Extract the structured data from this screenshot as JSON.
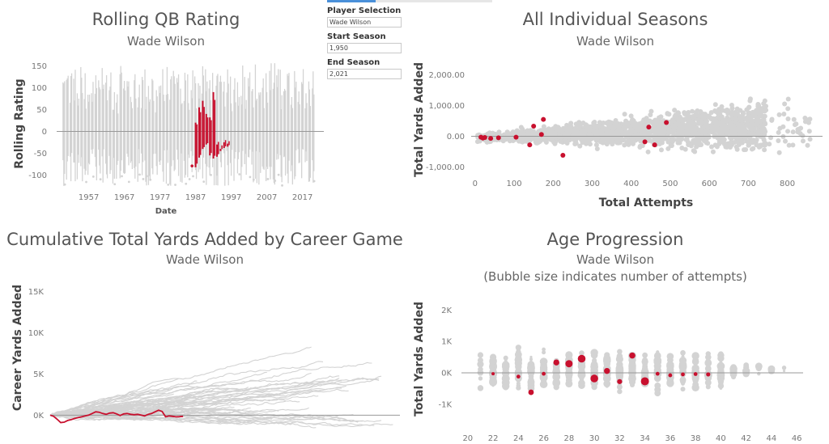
{
  "controls": {
    "player_label": "Player Selection",
    "player_value": "Wade Wilson",
    "start_label": "Start Season",
    "start_value": "1,950",
    "end_label": "End Season",
    "end_value": "2,021"
  },
  "colors": {
    "highlight": "#c8102e",
    "background_series": "#d3d3d3",
    "zero_line": "#999999"
  },
  "chart_data": [
    {
      "id": "rolling",
      "type": "line",
      "title": "Rolling QB Rating",
      "subtitle": "Wade Wilson",
      "xlabel": "Date",
      "ylabel": "Rolling Rating",
      "xlim": [
        1948,
        2023
      ],
      "ylim": [
        -125,
        160
      ],
      "x_ticks": [
        1957,
        1967,
        1977,
        1987,
        1997,
        2007,
        2017
      ],
      "y_ticks": [
        -100,
        -50,
        0,
        50,
        100,
        150
      ],
      "highlight_series": {
        "name": "Wade Wilson",
        "segments": [
          {
            "season": 1986,
            "min": -80,
            "max": -78
          },
          {
            "season": 1987,
            "min": -82,
            "max": 20
          },
          {
            "season": 1988,
            "min": -60,
            "max": 55
          },
          {
            "season": 1989,
            "min": -40,
            "max": 70
          },
          {
            "season": 1990,
            "min": -30,
            "max": 40
          },
          {
            "season": 1991,
            "min": -55,
            "max": 32
          },
          {
            "season": 1992,
            "min": -62,
            "max": 90
          },
          {
            "season": 1993,
            "min": -58,
            "max": -30
          },
          {
            "season": 1994,
            "min": -45,
            "max": -40
          },
          {
            "season": 1995,
            "min": -38,
            "max": -25
          },
          {
            "season": 1996,
            "min": -35,
            "max": -28
          }
        ]
      }
    },
    {
      "id": "seasons",
      "type": "scatter",
      "title": "All Individual Seasons",
      "subtitle": "Wade Wilson",
      "xlabel": "Total Attempts",
      "ylabel": "Total Yards Added",
      "xlim": [
        -10,
        890
      ],
      "ylim": [
        -1200,
        2600
      ],
      "x_ticks": [
        0,
        100,
        200,
        300,
        400,
        500,
        600,
        700,
        800
      ],
      "y_ticks": [
        -1000,
        0,
        1000,
        2000
      ],
      "y_tick_labels": [
        "-1,000.00",
        "0.00",
        "1,000.00",
        "2,000.00"
      ],
      "highlight_points": [
        {
          "x": 15,
          "y": -30
        },
        {
          "x": 20,
          "y": -60
        },
        {
          "x": 25,
          "y": -40
        },
        {
          "x": 40,
          "y": -70
        },
        {
          "x": 60,
          "y": -50
        },
        {
          "x": 105,
          "y": -30
        },
        {
          "x": 140,
          "y": -280
        },
        {
          "x": 150,
          "y": 330
        },
        {
          "x": 170,
          "y": 60
        },
        {
          "x": 175,
          "y": 550
        },
        {
          "x": 225,
          "y": -620
        },
        {
          "x": 435,
          "y": -180
        },
        {
          "x": 445,
          "y": 300
        },
        {
          "x": 460,
          "y": -280
        },
        {
          "x": 490,
          "y": 450
        }
      ]
    },
    {
      "id": "cumulative",
      "type": "line",
      "title": "Cumulative Total Yards Added by Career Game",
      "subtitle": "Wade Wilson",
      "xlabel": "",
      "ylabel": "Career Yards Added",
      "xlim": [
        0,
        300
      ],
      "ylim": [
        -3500,
        17000
      ],
      "y_ticks": [
        0,
        5000,
        10000,
        15000
      ],
      "y_tick_labels": [
        "0K",
        "5K",
        "10K",
        "15K"
      ],
      "highlight_series": {
        "name": "Wade Wilson",
        "x": [
          0,
          3,
          6,
          9,
          12,
          15,
          18,
          21,
          24,
          27,
          30,
          33,
          36,
          39,
          42,
          45,
          48,
          51,
          54,
          57,
          60,
          63,
          66,
          69,
          72,
          75,
          78,
          81,
          84,
          87,
          90,
          93,
          96,
          99,
          102,
          105,
          108,
          111,
          114
        ],
        "y": [
          0,
          -150,
          -500,
          -900,
          -850,
          -650,
          -550,
          -400,
          -300,
          -200,
          -100,
          0,
          200,
          400,
          350,
          200,
          100,
          250,
          300,
          150,
          -50,
          150,
          200,
          100,
          50,
          100,
          0,
          -100,
          100,
          200,
          400,
          600,
          450,
          -200,
          -100,
          -150,
          -200,
          -180,
          -150
        ]
      }
    },
    {
      "id": "age",
      "type": "scatter",
      "title": "Age Progression",
      "subtitle": "Wade Wilson",
      "subtitle2": "(Bubble size indicates number of attempts)",
      "xlabel": "",
      "ylabel": "Total Yards Added",
      "xlim": [
        19.5,
        46.5
      ],
      "ylim": [
        -1700,
        2600
      ],
      "x_ticks": [
        20,
        22,
        24,
        26,
        28,
        30,
        32,
        34,
        36,
        38,
        40,
        42,
        44,
        46
      ],
      "y_ticks": [
        -1000,
        0,
        1000,
        2000
      ],
      "y_tick_labels": [
        "-1K",
        "0K",
        "1K",
        "2K"
      ],
      "highlight_points": [
        {
          "age": 22,
          "y": -30,
          "attempts": 20
        },
        {
          "age": 24,
          "y": -120,
          "attempts": 40
        },
        {
          "age": 25,
          "y": -620,
          "attempts": 120
        },
        {
          "age": 26,
          "y": -30,
          "attempts": 40
        },
        {
          "age": 27,
          "y": 330,
          "attempts": 150
        },
        {
          "age": 28,
          "y": 290,
          "attempts": 260
        },
        {
          "age": 29,
          "y": 450,
          "attempts": 300
        },
        {
          "age": 30,
          "y": -180,
          "attempts": 300
        },
        {
          "age": 31,
          "y": 60,
          "attempts": 150
        },
        {
          "age": 32,
          "y": -280,
          "attempts": 90
        },
        {
          "age": 33,
          "y": 550,
          "attempts": 160
        },
        {
          "age": 34,
          "y": -270,
          "attempts": 330
        },
        {
          "age": 35,
          "y": -30,
          "attempts": 40
        },
        {
          "age": 36,
          "y": -80,
          "attempts": 40
        },
        {
          "age": 37,
          "y": -50,
          "attempts": 40
        },
        {
          "age": 38,
          "y": -40,
          "attempts": 40
        },
        {
          "age": 39,
          "y": -50,
          "attempts": 50
        }
      ]
    }
  ]
}
